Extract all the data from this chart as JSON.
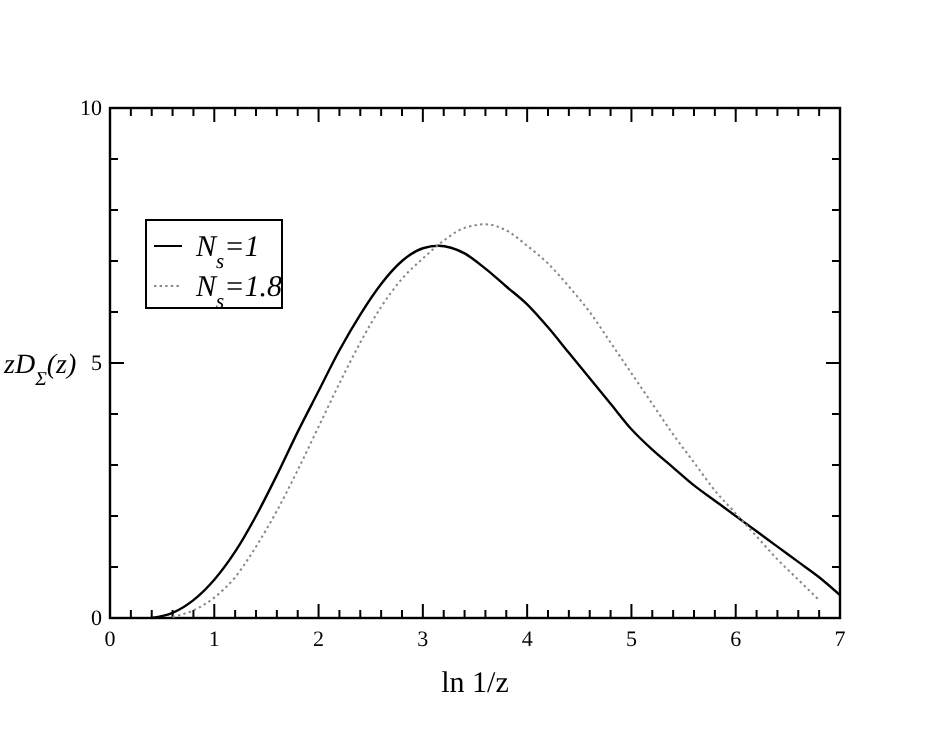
{
  "chart_data": {
    "type": "line",
    "xlabel": "ln 1/z",
    "ylabel": "zD$_{Σ}$(z)",
    "xlim": [
      0,
      7
    ],
    "ylim": [
      0,
      10
    ],
    "xticks": [
      0,
      {
        "value": 0.2,
        "label": null
      },
      {
        "value": 0.4,
        "label": null
      },
      {
        "value": 0.6,
        "label": null
      },
      {
        "value": 0.8,
        "label": null
      },
      1,
      {
        "value": 1.2,
        "label": null
      },
      {
        "value": 1.4,
        "label": null
      },
      {
        "value": 1.6,
        "label": null
      },
      {
        "value": 1.8,
        "label": null
      },
      2,
      {
        "value": 2.2,
        "label": null
      },
      {
        "value": 2.4,
        "label": null
      },
      {
        "value": 2.6,
        "label": null
      },
      {
        "value": 2.8,
        "label": null
      },
      3,
      {
        "value": 3.2,
        "label": null
      },
      {
        "value": 3.4,
        "label": null
      },
      {
        "value": 3.6,
        "label": null
      },
      {
        "value": 3.8,
        "label": null
      },
      4,
      {
        "value": 4.2,
        "label": null
      },
      {
        "value": 4.4,
        "label": null
      },
      {
        "value": 4.6,
        "label": null
      },
      {
        "value": 4.8,
        "label": null
      },
      5,
      {
        "value": 5.2,
        "label": null
      },
      {
        "value": 5.4,
        "label": null
      },
      {
        "value": 5.6,
        "label": null
      },
      {
        "value": 5.8,
        "label": null
      },
      6,
      {
        "value": 6.2,
        "label": null
      },
      {
        "value": 6.4,
        "label": null
      },
      {
        "value": 6.6,
        "label": null
      },
      {
        "value": 6.8,
        "label": null
      },
      7
    ],
    "yticks": [
      0,
      {
        "value": 1,
        "label": null
      },
      {
        "value": 2,
        "label": null
      },
      {
        "value": 3,
        "label": null
      },
      {
        "value": 4,
        "label": null
      },
      5,
      {
        "value": 6,
        "label": null
      },
      {
        "value": 7,
        "label": null
      },
      {
        "value": 8,
        "label": null
      },
      {
        "value": 9,
        "label": null
      },
      10
    ],
    "legend": "top left",
    "marker": "none",
    "series": [
      {
        "name": "N$_{s}$=1",
        "color": "#000000",
        "line_style": "solid",
        "x": [
          0.4,
          0.6,
          0.8,
          1.0,
          1.2,
          1.4,
          1.6,
          1.8,
          2.0,
          2.2,
          2.4,
          2.6,
          2.8,
          3.0,
          3.15,
          3.4,
          3.6,
          3.8,
          4.0,
          4.2,
          4.4,
          4.6,
          4.8,
          5.0,
          5.2,
          5.4,
          5.6,
          5.8,
          6.0,
          6.2,
          6.4,
          6.6,
          6.8,
          7.0
        ],
        "values": [
          0,
          0.1,
          0.35,
          0.75,
          1.3,
          2.0,
          2.8,
          3.65,
          4.45,
          5.25,
          5.95,
          6.55,
          7.0,
          7.25,
          7.3,
          7.15,
          6.85,
          6.5,
          6.15,
          5.7,
          5.2,
          4.7,
          4.2,
          3.7,
          3.3,
          2.95,
          2.6,
          2.3,
          2.0,
          1.7,
          1.4,
          1.1,
          0.8,
          0.45
        ]
      },
      {
        "name": "N$_{s}$=1.8",
        "color": "#888888",
        "line_style": "dotted",
        "x": [
          0.6,
          0.8,
          1.0,
          1.2,
          1.4,
          1.6,
          1.8,
          2.0,
          2.2,
          2.4,
          2.6,
          2.8,
          3.0,
          3.2,
          3.4,
          3.6,
          3.8,
          4.0,
          4.2,
          4.4,
          4.6,
          4.8,
          5.0,
          5.2,
          5.4,
          5.6,
          5.8,
          6.0,
          6.2,
          6.4,
          6.6,
          6.8
        ],
        "values": [
          0.02,
          0.15,
          0.4,
          0.8,
          1.4,
          2.1,
          2.9,
          3.75,
          4.6,
          5.4,
          6.1,
          6.65,
          7.05,
          7.4,
          7.65,
          7.72,
          7.6,
          7.3,
          6.95,
          6.5,
          6.0,
          5.4,
          4.8,
          4.2,
          3.6,
          3.05,
          2.5,
          2.05,
          1.6,
          1.15,
          0.75,
          0.35
        ]
      }
    ]
  }
}
